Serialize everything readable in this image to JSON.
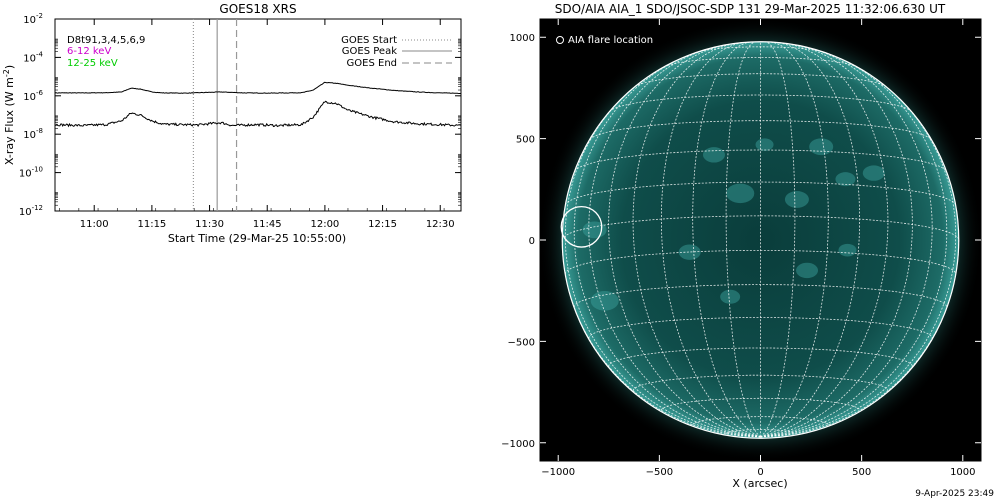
{
  "chart_data": [
    {
      "type": "line",
      "title": "GOES18 XRS",
      "xlabel": "Start Time (29-Mar-25 10:55:00)",
      "ylabel_main": "X-ray Flux (W m",
      "ylabel_exp": "-2",
      "ylabel_close": ")",
      "x_range_minutes": [
        10.83,
        12.59
      ],
      "xticks": [
        {
          "label": "11:00",
          "value": 11.0
        },
        {
          "label": "11:15",
          "value": 11.25
        },
        {
          "label": "11:30",
          "value": 11.5
        },
        {
          "label": "11:45",
          "value": 11.75
        },
        {
          "label": "12:00",
          "value": 12.0
        },
        {
          "label": "12:15",
          "value": 12.25
        },
        {
          "label": "12:30",
          "value": 12.5
        }
      ],
      "y_scale": "log",
      "ylim_log10": [
        -12,
        -2
      ],
      "yticks": [
        {
          "base": "10",
          "exp": "-2",
          "value": -2
        },
        {
          "base": "10",
          "exp": "-4",
          "value": -4
        },
        {
          "base": "10",
          "exp": "-6",
          "value": -6
        },
        {
          "base": "10",
          "exp": "-8",
          "value": -8
        },
        {
          "base": "10",
          "exp": "-10",
          "value": -10
        },
        {
          "base": "10",
          "exp": "-12",
          "value": -12
        }
      ],
      "left_legend": [
        {
          "text": "D8t91,3,4,5,6,9",
          "color": "#000000"
        },
        {
          "text": "6-12 keV",
          "color": "#cc00cc"
        },
        {
          "text": "12-25 keV",
          "color": "#00cc00"
        }
      ],
      "right_legend": [
        {
          "text": "GOES Start",
          "style": "dotted"
        },
        {
          "text": "GOES Peak",
          "style": "solid"
        },
        {
          "text": "GOES End",
          "style": "dashed"
        }
      ],
      "vlines": [
        {
          "name": "GOES Start",
          "x": 11.43,
          "style": "dotted"
        },
        {
          "name": "GOES Peak",
          "x": 11.533,
          "style": "solid"
        },
        {
          "name": "GOES End",
          "x": 11.617,
          "style": "dashed"
        }
      ],
      "series": [
        {
          "band": "long",
          "points": [
            [
              10.83,
              -5.85
            ],
            [
              10.95,
              -5.85
            ],
            [
              11.05,
              -5.84
            ],
            [
              11.12,
              -5.8
            ],
            [
              11.16,
              -5.6
            ],
            [
              11.2,
              -5.65
            ],
            [
              11.25,
              -5.8
            ],
            [
              11.3,
              -5.85
            ],
            [
              11.4,
              -5.86
            ],
            [
              11.5,
              -5.82
            ],
            [
              11.55,
              -5.8
            ],
            [
              11.65,
              -5.85
            ],
            [
              11.75,
              -5.86
            ],
            [
              11.9,
              -5.84
            ],
            [
              11.95,
              -5.7
            ],
            [
              12.0,
              -5.3
            ],
            [
              12.05,
              -5.35
            ],
            [
              12.1,
              -5.45
            ],
            [
              12.2,
              -5.6
            ],
            [
              12.3,
              -5.72
            ],
            [
              12.4,
              -5.8
            ],
            [
              12.5,
              -5.85
            ],
            [
              12.59,
              -5.87
            ]
          ]
        },
        {
          "band": "short",
          "points": [
            [
              10.83,
              -7.5
            ],
            [
              10.95,
              -7.55
            ],
            [
              11.05,
              -7.5
            ],
            [
              11.12,
              -7.3
            ],
            [
              11.16,
              -6.9
            ],
            [
              11.2,
              -7.0
            ],
            [
              11.25,
              -7.3
            ],
            [
              11.3,
              -7.48
            ],
            [
              11.45,
              -7.52
            ],
            [
              11.5,
              -7.45
            ],
            [
              11.55,
              -7.4
            ],
            [
              11.6,
              -7.55
            ],
            [
              11.7,
              -7.5
            ],
            [
              11.8,
              -7.55
            ],
            [
              11.9,
              -7.5
            ],
            [
              11.95,
              -7.1
            ],
            [
              12.0,
              -6.3
            ],
            [
              12.05,
              -6.4
            ],
            [
              12.1,
              -6.75
            ],
            [
              12.2,
              -7.1
            ],
            [
              12.3,
              -7.35
            ],
            [
              12.4,
              -7.45
            ],
            [
              12.5,
              -7.5
            ],
            [
              12.59,
              -7.55
            ]
          ]
        }
      ]
    },
    {
      "type": "image",
      "title": "SDO/AIA AIA_1 SDO/JSOC-SDP 131 29-Mar-2025 11:32:06.630 UT",
      "xlabel": "X (arcsec)",
      "xlim": [
        -1090,
        1090
      ],
      "ylim": [
        -1090,
        1090
      ],
      "xticks": [
        -1000,
        -500,
        0,
        500,
        1000
      ],
      "yticks": [
        -1000,
        -500,
        0,
        500,
        1000
      ],
      "xtick_labels": [
        "−1000",
        "−500",
        "0",
        "500",
        "1000"
      ],
      "ytick_labels": [
        "−1000",
        "−500",
        "0",
        "500",
        "1000"
      ],
      "legend": "AIA flare location",
      "solar_radius_arcsec": 980,
      "b0_deg": -7,
      "flare_location": [
        -885,
        65
      ],
      "flare_circle_radius_arcsec": 100,
      "colors": {
        "disk": "#0e4c4a",
        "limb": "#3fa7a1",
        "grid": "#ffffff"
      }
    }
  ],
  "footer": {
    "timestamp": "9-Apr-2025 23:49"
  }
}
